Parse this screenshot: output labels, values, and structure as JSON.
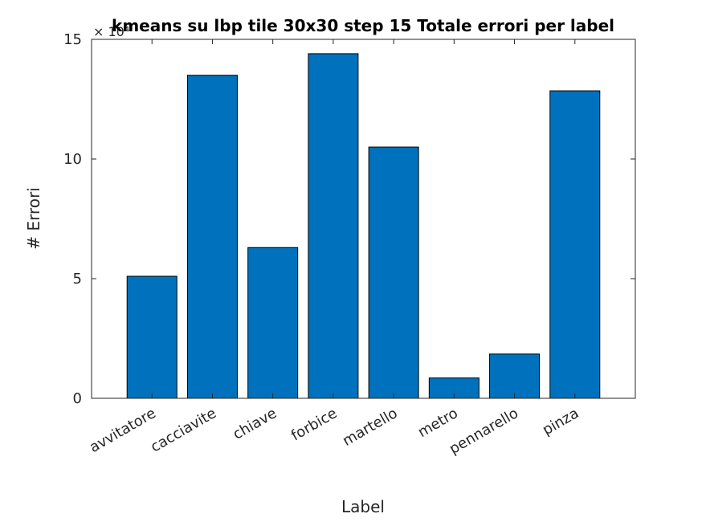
{
  "chart_data": {
    "type": "bar",
    "title": "kmeans su lbp tile 30x30 step 15 Totale errori per label",
    "xlabel": "Label",
    "ylabel": "# Errori",
    "y_exponent_label": "× 10⁴",
    "categories": [
      "avvitatore",
      "cacciavite",
      "chiave",
      "forbice",
      "martello",
      "metro",
      "pennarello",
      "pinza"
    ],
    "values": [
      51000,
      135000,
      63000,
      144000,
      105000,
      8500,
      18500,
      128500
    ],
    "ylim": [
      0,
      150000
    ],
    "yticks": [
      0,
      50000,
      100000,
      150000
    ],
    "ytick_labels": [
      "0",
      "5",
      "10",
      "15"
    ],
    "grid": false,
    "bar_color": "#0072BD"
  }
}
